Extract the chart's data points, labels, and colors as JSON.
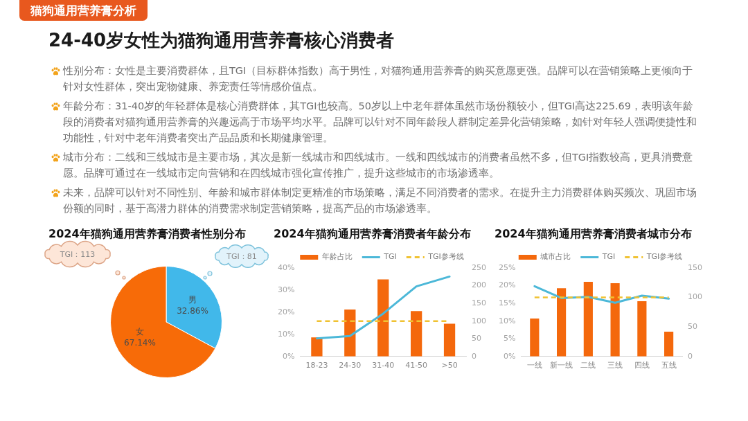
{
  "chart_data": [
    {
      "type": "other",
      "subtitle": "猫狗通用营养膏分析",
      "title": "24-40岁女性为猫狗通用营养膏核心消费者",
      "annotations": [
        "性别分布：女性是主要消费群体，且TGI（目标群体指数）高于男性，对猫狗通用营养膏的购买意愿更强。品牌可以在营销策略上更倾向于针对女性群体，突出宠物健康、养宠责任等情感价值点。",
        "年龄分布：31-40岁的年轻群体是核心消费群体，其TGI也较高。50岁以上中老年群体虽然市场份额较小，但TGI高达225.69，表明该年龄段的消费者对猫狗通用营养膏的兴趣远高于市场平均水平。品牌可以针对不同年龄段人群制定差异化营销策略，如针对年轻人强调便捷性和功能性，针对中老年消费者突出产品品质和长期健康管理。",
        "城市分布：二线和三线城市是主要市场，其次是新一线城市和四线城市。一线和四线城市的消费者虽然不多，但TGI指数较高，更具消费意愿。品牌可通过在一线城市定向营销和在四线城市强化宣传推广，提升这些城市的市场渗透率。",
        "未来，品牌可以针对不同性别、年龄和城市群体制定更精准的市场策略，满足不同消费者的需求。在提升主力消费群体购买频次、巩固市场份额的同时，基于高潜力群体的消费需求制定营销策略，提高产品的市场渗透率。"
      ]
    },
    {
      "type": "pie",
      "title": "2024年猫狗通用营养膏消费者性别分布",
      "categories": [
        "男",
        "女"
      ],
      "values": [
        32.86,
        67.14
      ],
      "colors": [
        "#41b8ea",
        "#f76b08"
      ],
      "value_labels": [
        "32.86%",
        "67.14%"
      ],
      "annotations": [
        "TGI：113",
        "TGI：81"
      ]
    },
    {
      "type": "bar",
      "title": "2024年猫狗通用营养膏消费者年龄分布",
      "categories": [
        "18-23",
        "24-30",
        "31-40",
        "41-50",
        ">50"
      ],
      "series": [
        {
          "name": "年龄占比",
          "type": "bar",
          "color": "#f4680c",
          "values": [
            8.6,
            21.2,
            34.8,
            20.5,
            14.8
          ]
        },
        {
          "name": "TGI",
          "type": "line",
          "axis": "y2",
          "color": "#4cb8d8",
          "values": [
            51,
            58,
            121,
            198,
            225.69
          ]
        }
      ],
      "ref_lines": [
        {
          "axis": "y2",
          "value": 100,
          "label": "TGI参考线",
          "color": "#f0c232",
          "line_style": "dashed"
        }
      ],
      "ylim": [
        0,
        40
      ],
      "yticks": [
        {
          "value": 0,
          "label": "0%"
        },
        {
          "value": 10,
          "label": "10%"
        },
        {
          "value": 20,
          "label": "20%"
        },
        {
          "value": 30,
          "label": "30%"
        },
        {
          "value": 40,
          "label": "40%"
        }
      ],
      "y2lim": [
        0,
        250
      ],
      "y2ticks": [
        0,
        50,
        100,
        150,
        200,
        250
      ],
      "legend": "top",
      "grid": false
    },
    {
      "type": "bar",
      "title": "2024年猫狗通用营养膏消费者城市分布",
      "categories": [
        "一线",
        "新一线",
        "二线",
        "三线",
        "四线",
        "五线"
      ],
      "series": [
        {
          "name": "城市占比",
          "type": "bar",
          "color": "#f4680c",
          "values": [
            10.7,
            19.3,
            21.1,
            20.7,
            15.6,
            7.0
          ]
        },
        {
          "name": "TGI",
          "type": "line",
          "axis": "y2",
          "color": "#4cb8d8",
          "values": [
            119,
            99,
            101,
            91,
            103,
            98
          ]
        }
      ],
      "ref_lines": [
        {
          "axis": "y2",
          "value": 100,
          "label": "TGI参考线",
          "color": "#f0c232",
          "line_style": "dashed"
        }
      ],
      "ylim": [
        0,
        25
      ],
      "yticks": [
        {
          "value": 0,
          "label": "0%"
        },
        {
          "value": 5,
          "label": "5%"
        },
        {
          "value": 10,
          "label": "10%"
        },
        {
          "value": 15,
          "label": "15%"
        },
        {
          "value": 20,
          "label": "20%"
        },
        {
          "value": 25,
          "label": "25%"
        }
      ],
      "y2lim": [
        0,
        150
      ],
      "y2ticks": [
        0,
        50,
        100,
        150
      ],
      "legend": "top",
      "grid": false
    }
  ]
}
